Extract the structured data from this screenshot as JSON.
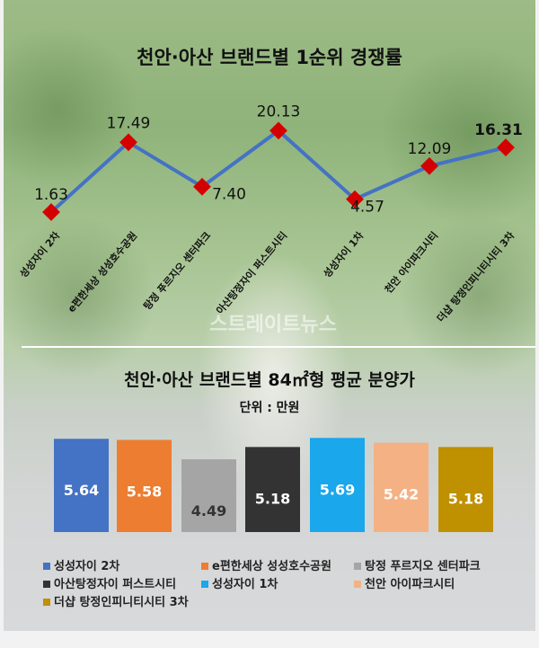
{
  "chart_data": [
    {
      "type": "line",
      "title": "천안·아산 브랜드별 1순위 경쟁률",
      "categories": [
        "성성자이 2차",
        "e편한세상 성성호수공원",
        "탕정 푸르지오 센터파크",
        "아산탕정자이 퍼스트시티",
        "성성자이 1차",
        "천안 아이파크시티",
        "더샵 탕정인피니티시티 3차"
      ],
      "values": [
        1.63,
        17.49,
        7.4,
        20.13,
        4.57,
        12.09,
        16.31
      ],
      "labels": [
        "1.63",
        "17.49",
        "7.40",
        "20.13",
        "4.57",
        "12.09",
        "16.31"
      ],
      "line_color": "#4472c4",
      "marker_color": "#d40000",
      "grid": false
    },
    {
      "type": "bar",
      "title": "천안·아산 브랜드별 84㎡형 평균 분양가",
      "unit": "단위 : 만원",
      "categories": [
        "성성자이 2차",
        "e편한세상 성성호수공원",
        "탕정 푸르지오 센터파크",
        "아산탕정자이 퍼스트시티",
        "성성자이 1차",
        "천안 아이파크시티",
        "더샵 탕정인피니티시티 3차"
      ],
      "values": [
        5.64,
        5.58,
        4.49,
        5.18,
        5.69,
        5.42,
        5.18
      ],
      "labels": [
        "5.64",
        "5.58",
        "4.49",
        "5.18",
        "5.69",
        "5.42",
        "5.18"
      ],
      "colors": [
        "#4472c4",
        "#ed7d31",
        "#a5a5a5",
        "#333333",
        "#1aa7ec",
        "#f4b183",
        "#bf9000"
      ],
      "legend": "bottom",
      "grid": false
    }
  ],
  "watermark": "스트레이트뉴스"
}
